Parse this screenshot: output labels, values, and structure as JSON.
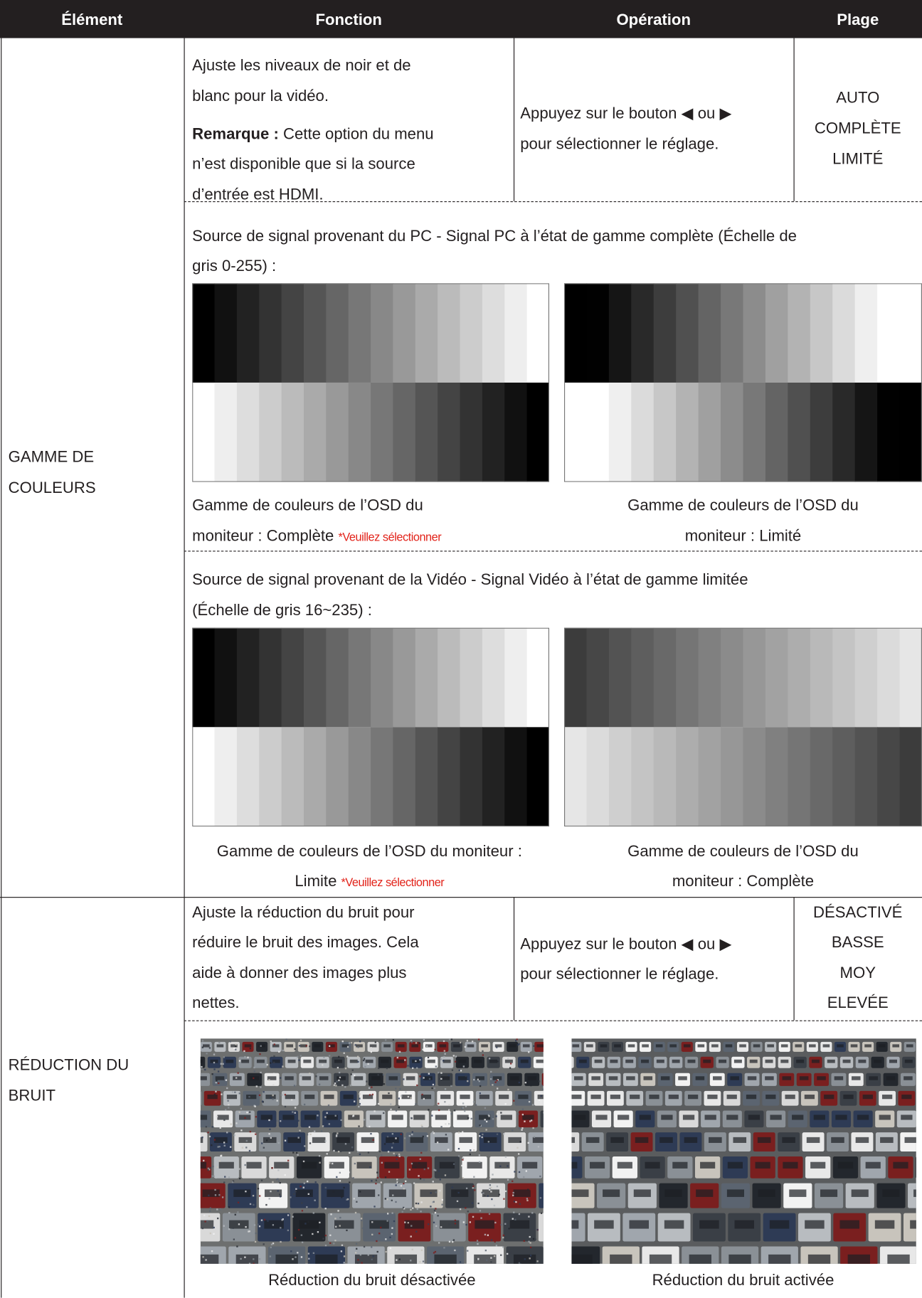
{
  "table": {
    "header": [
      "Élément",
      "Fonction",
      "Opération",
      "Plage"
    ],
    "color_range": {
      "item": [
        "GAMME DE",
        "COULEURS"
      ],
      "function": [
        "Ajuste les niveaux de noir et de",
        "blanc pour la vidéo."
      ],
      "note_label": "Remarque :",
      "note": [
        "Cette option du menu",
        "n’est disponible que si la source",
        "d’entrée est HDMI."
      ],
      "operation": [
        "Appuyez sur le bouton ◀ ou ▶",
        "pour sélectionner le réglage."
      ],
      "range": [
        "AUTO",
        "COMPLÈTE",
        "LIMITÉ"
      ],
      "pc_source": [
        "Source de signal provenant du PC - Signal PC à l’état de gamme complète (Échelle de",
        "gris 0-255) :"
      ],
      "pc_left_caption": [
        "Gamme de couleurs de l’OSD du",
        "moniteur : Complète"
      ],
      "pc_left_hint": "*Veuillez sélectionner",
      "pc_right_caption": [
        "Gamme de couleurs de l’OSD du",
        "moniteur : Limité"
      ],
      "video_source": [
        "Source de signal provenant de la Vidéo - Signal Vidéo à l’état de gamme limitée",
        "(Échelle de gris 16~235) :"
      ],
      "video_left_caption": [
        "Gamme de couleurs de l’OSD du moniteur :",
        "Limite"
      ],
      "video_left_hint": "*Veuillez sélectionner",
      "video_right_caption": [
        "Gamme de couleurs de l’OSD du",
        "moniteur : Complète"
      ]
    },
    "noise_reduction": {
      "item": [
        "RÉDUCTION DU",
        "BRUIT"
      ],
      "function": [
        "Ajuste la réduction du bruit pour",
        "réduire le bruit des images. Cela",
        "aide à donner des images plus",
        "nettes."
      ],
      "operation": [
        "Appuyez sur le bouton ◀ ou ▶",
        "pour sélectionner le réglage."
      ],
      "range": [
        "DÉSACTIVÉ",
        "BASSE",
        "MOY",
        "ELEVÉE"
      ],
      "left_caption": "Réduction du bruit désactivée",
      "right_caption": "Réduction du bruit activée"
    }
  }
}
